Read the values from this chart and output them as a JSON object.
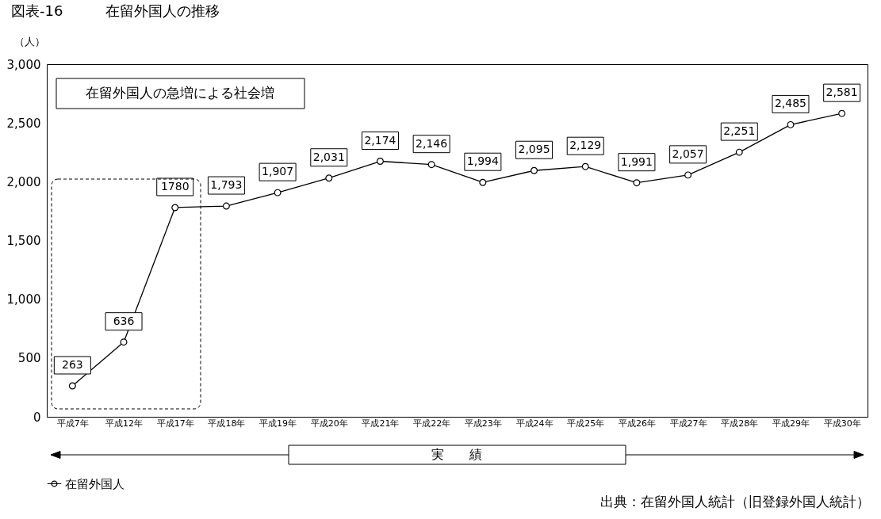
{
  "chart_data": {
    "type": "line",
    "title": "図表-16　　　在留外国人の推移",
    "ylabel": "（人）",
    "categories": [
      "平成7年",
      "平成12年",
      "平成17年",
      "平成18年",
      "平成19年",
      "平成20年",
      "平成21年",
      "平成22年",
      "平成23年",
      "平成24年",
      "平成25年",
      "平成26年",
      "平成27年",
      "平成28年",
      "平成29年",
      "平成30年"
    ],
    "series": [
      {
        "name": "在留外国人",
        "color": "#000000",
        "values": [
          263,
          636,
          1780,
          1793,
          1907,
          2031,
          2174,
          2146,
          1994,
          2095,
          2129,
          1991,
          2057,
          2251,
          2485,
          2581
        ],
        "value_labels": [
          "263",
          "636",
          "1780",
          "1,793",
          "1,907",
          "2,031",
          "2,174",
          "2,146",
          "1,994",
          "2,095",
          "2,129",
          "1,991",
          "2,057",
          "2,251",
          "2,485",
          "2,581"
        ]
      }
    ],
    "ylim": [
      0,
      3000
    ],
    "yticks": [
      {
        "value": 0,
        "label": "0"
      },
      {
        "value": 500,
        "label": "500"
      },
      {
        "value": 1000,
        "label": "1,000"
      },
      {
        "value": 1500,
        "label": "1,500"
      },
      {
        "value": 2000,
        "label": "2,000"
      },
      {
        "value": 2500,
        "label": "2,500"
      },
      {
        "value": 3000,
        "label": "3,000"
      }
    ],
    "grid": false,
    "legend": "bottom",
    "marker": "circle",
    "line_style": "solid",
    "annotations": [
      "在留外国人の急増による社会増",
      "実　　績",
      "出典：在留外国人統計（旧登録外国人統計）"
    ]
  }
}
